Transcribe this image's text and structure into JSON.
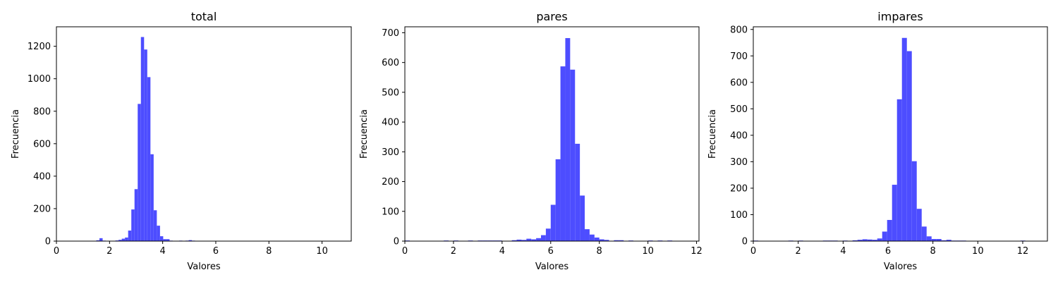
{
  "chart_data": [
    {
      "type": "bar",
      "title": "total",
      "xlabel": "Valores",
      "ylabel": "Frecuencia",
      "xlim": [
        0,
        11.1
      ],
      "ylim": [
        0,
        1320
      ],
      "xticks": [
        0,
        2,
        4,
        6,
        8,
        10
      ],
      "yticks": [
        0,
        200,
        400,
        600,
        800,
        1000,
        1200
      ],
      "color": "#4d4dff",
      "bins": [
        {
          "x0": 1.5,
          "x1": 1.62,
          "y": 5
        },
        {
          "x0": 1.62,
          "x1": 1.74,
          "y": 18
        },
        {
          "x0": 1.74,
          "x1": 1.86,
          "y": 3
        },
        {
          "x0": 2.1,
          "x1": 2.22,
          "y": 2
        },
        {
          "x0": 2.22,
          "x1": 2.34,
          "y": 4
        },
        {
          "x0": 2.34,
          "x1": 2.46,
          "y": 8
        },
        {
          "x0": 2.46,
          "x1": 2.58,
          "y": 15
        },
        {
          "x0": 2.58,
          "x1": 2.7,
          "y": 22
        },
        {
          "x0": 2.7,
          "x1": 2.82,
          "y": 65
        },
        {
          "x0": 2.82,
          "x1": 2.94,
          "y": 195
        },
        {
          "x0": 2.94,
          "x1": 3.06,
          "y": 320
        },
        {
          "x0": 3.06,
          "x1": 3.18,
          "y": 845
        },
        {
          "x0": 3.18,
          "x1": 3.3,
          "y": 1257
        },
        {
          "x0": 3.3,
          "x1": 3.42,
          "y": 1180
        },
        {
          "x0": 3.42,
          "x1": 3.54,
          "y": 1010
        },
        {
          "x0": 3.54,
          "x1": 3.66,
          "y": 535
        },
        {
          "x0": 3.66,
          "x1": 3.78,
          "y": 190
        },
        {
          "x0": 3.78,
          "x1": 3.9,
          "y": 95
        },
        {
          "x0": 3.9,
          "x1": 4.02,
          "y": 30
        },
        {
          "x0": 4.02,
          "x1": 4.14,
          "y": 12
        },
        {
          "x0": 4.14,
          "x1": 4.26,
          "y": 12
        },
        {
          "x0": 4.26,
          "x1": 4.38,
          "y": 3
        },
        {
          "x0": 4.5,
          "x1": 4.62,
          "y": 2
        },
        {
          "x0": 4.62,
          "x1": 4.74,
          "y": 3
        },
        {
          "x0": 4.86,
          "x1": 4.98,
          "y": 3
        },
        {
          "x0": 4.98,
          "x1": 5.1,
          "y": 6
        },
        {
          "x0": 5.1,
          "x1": 5.22,
          "y": 3
        },
        {
          "x0": 5.34,
          "x1": 5.46,
          "y": 2
        },
        {
          "x0": 6.06,
          "x1": 6.18,
          "y": 2
        },
        {
          "x0": 6.18,
          "x1": 6.3,
          "y": 2
        },
        {
          "x0": 6.9,
          "x1": 7.02,
          "y": 2
        },
        {
          "x0": 7.26,
          "x1": 7.38,
          "y": 2
        },
        {
          "x0": 10.02,
          "x1": 10.14,
          "y": 2
        }
      ]
    },
    {
      "type": "bar",
      "title": "pares",
      "xlabel": "Valores",
      "ylabel": "Frecuencia",
      "xlim": [
        0,
        12.1
      ],
      "ylim": [
        0,
        720
      ],
      "xticks": [
        0,
        2,
        4,
        6,
        8,
        10,
        12
      ],
      "yticks": [
        0,
        100,
        200,
        300,
        400,
        500,
        600,
        700
      ],
      "color": "#4d4dff",
      "bins": [
        {
          "x0": 0.0,
          "x1": 0.2,
          "y": 2
        },
        {
          "x0": 1.6,
          "x1": 1.8,
          "y": 2
        },
        {
          "x0": 2.0,
          "x1": 2.2,
          "y": 2
        },
        {
          "x0": 2.6,
          "x1": 2.8,
          "y": 2
        },
        {
          "x0": 3.0,
          "x1": 3.2,
          "y": 2
        },
        {
          "x0": 3.2,
          "x1": 3.4,
          "y": 2
        },
        {
          "x0": 3.4,
          "x1": 3.6,
          "y": 2
        },
        {
          "x0": 3.6,
          "x1": 3.8,
          "y": 2
        },
        {
          "x0": 3.8,
          "x1": 4.0,
          "y": 2
        },
        {
          "x0": 4.4,
          "x1": 4.6,
          "y": 3
        },
        {
          "x0": 4.6,
          "x1": 4.8,
          "y": 5
        },
        {
          "x0": 4.8,
          "x1": 5.0,
          "y": 4
        },
        {
          "x0": 5.0,
          "x1": 5.2,
          "y": 8
        },
        {
          "x0": 5.2,
          "x1": 5.4,
          "y": 6
        },
        {
          "x0": 5.4,
          "x1": 5.6,
          "y": 10
        },
        {
          "x0": 5.6,
          "x1": 5.8,
          "y": 20
        },
        {
          "x0": 5.8,
          "x1": 6.0,
          "y": 42
        },
        {
          "x0": 6.0,
          "x1": 6.2,
          "y": 122
        },
        {
          "x0": 6.2,
          "x1": 6.4,
          "y": 275
        },
        {
          "x0": 6.4,
          "x1": 6.6,
          "y": 587
        },
        {
          "x0": 6.6,
          "x1": 6.8,
          "y": 682
        },
        {
          "x0": 6.8,
          "x1": 7.0,
          "y": 576
        },
        {
          "x0": 7.0,
          "x1": 7.2,
          "y": 327
        },
        {
          "x0": 7.2,
          "x1": 7.4,
          "y": 153
        },
        {
          "x0": 7.4,
          "x1": 7.6,
          "y": 40
        },
        {
          "x0": 7.6,
          "x1": 7.8,
          "y": 22
        },
        {
          "x0": 7.8,
          "x1": 8.0,
          "y": 12
        },
        {
          "x0": 8.0,
          "x1": 8.2,
          "y": 6
        },
        {
          "x0": 8.2,
          "x1": 8.4,
          "y": 4
        },
        {
          "x0": 8.6,
          "x1": 8.8,
          "y": 3
        },
        {
          "x0": 8.8,
          "x1": 9.0,
          "y": 3
        },
        {
          "x0": 9.2,
          "x1": 9.4,
          "y": 2
        },
        {
          "x0": 10.0,
          "x1": 10.2,
          "y": 2
        },
        {
          "x0": 10.4,
          "x1": 10.6,
          "y": 2
        },
        {
          "x0": 10.8,
          "x1": 11.0,
          "y": 2
        }
      ]
    },
    {
      "type": "bar",
      "title": "impares",
      "xlabel": "Valores",
      "ylabel": "Frecuencia",
      "xlim": [
        0,
        13.1
      ],
      "ylim": [
        0,
        810
      ],
      "xticks": [
        0,
        2,
        4,
        6,
        8,
        10,
        12
      ],
      "yticks": [
        0,
        100,
        200,
        300,
        400,
        500,
        600,
        700,
        800
      ],
      "color": "#4d4dff",
      "bins": [
        {
          "x0": 0.0,
          "x1": 0.22,
          "y": 2
        },
        {
          "x0": 1.56,
          "x1": 1.78,
          "y": 2
        },
        {
          "x0": 2.0,
          "x1": 2.22,
          "y": 2
        },
        {
          "x0": 3.1,
          "x1": 3.32,
          "y": 2
        },
        {
          "x0": 3.32,
          "x1": 3.54,
          "y": 2
        },
        {
          "x0": 3.54,
          "x1": 3.76,
          "y": 2
        },
        {
          "x0": 3.98,
          "x1": 4.2,
          "y": 2
        },
        {
          "x0": 4.42,
          "x1": 4.64,
          "y": 3
        },
        {
          "x0": 4.64,
          "x1": 4.86,
          "y": 5
        },
        {
          "x0": 4.86,
          "x1": 5.08,
          "y": 7
        },
        {
          "x0": 5.08,
          "x1": 5.3,
          "y": 6
        },
        {
          "x0": 5.3,
          "x1": 5.52,
          "y": 5
        },
        {
          "x0": 5.52,
          "x1": 5.74,
          "y": 10
        },
        {
          "x0": 5.74,
          "x1": 5.96,
          "y": 36
        },
        {
          "x0": 5.96,
          "x1": 6.18,
          "y": 80
        },
        {
          "x0": 6.18,
          "x1": 6.4,
          "y": 213
        },
        {
          "x0": 6.4,
          "x1": 6.62,
          "y": 536
        },
        {
          "x0": 6.62,
          "x1": 6.84,
          "y": 768
        },
        {
          "x0": 6.84,
          "x1": 7.06,
          "y": 718
        },
        {
          "x0": 7.06,
          "x1": 7.28,
          "y": 302
        },
        {
          "x0": 7.28,
          "x1": 7.5,
          "y": 122
        },
        {
          "x0": 7.5,
          "x1": 7.72,
          "y": 55
        },
        {
          "x0": 7.72,
          "x1": 7.94,
          "y": 18
        },
        {
          "x0": 7.94,
          "x1": 8.16,
          "y": 8
        },
        {
          "x0": 8.16,
          "x1": 8.38,
          "y": 8
        },
        {
          "x0": 8.38,
          "x1": 8.6,
          "y": 3
        },
        {
          "x0": 8.6,
          "x1": 8.82,
          "y": 5
        },
        {
          "x0": 8.82,
          "x1": 9.04,
          "y": 2
        },
        {
          "x0": 9.04,
          "x1": 9.26,
          "y": 2
        },
        {
          "x0": 9.26,
          "x1": 9.48,
          "y": 2
        },
        {
          "x0": 11.9,
          "x1": 12.12,
          "y": 2
        }
      ]
    }
  ]
}
